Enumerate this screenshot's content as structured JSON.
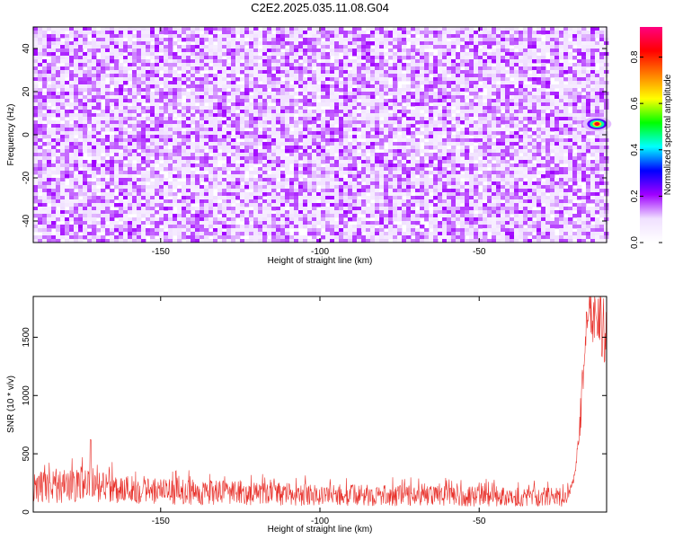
{
  "title": "C2E2.2025.035.11.08.G04",
  "chart_data": [
    {
      "type": "heatmap",
      "xlabel": "Height of straight line (km)",
      "ylabel": "Frequency (Hz)",
      "xlim": [
        -190,
        -10
      ],
      "ylim": [
        -50,
        50
      ],
      "xticks": [
        -150,
        -100,
        -50
      ],
      "yticks": [
        -40,
        -20,
        0,
        20,
        40
      ],
      "colorbar": {
        "label": "Normalized spectral amplitude",
        "range": [
          0,
          0.93
        ],
        "ticks": [
          0.0,
          0.2,
          0.4,
          0.6,
          0.8
        ],
        "colormap": [
          "#ffffff",
          "#f0e0ff",
          "#a000ff",
          "#0000ff",
          "#00ffff",
          "#00ff00",
          "#ffff00",
          "#ff8000",
          "#ff0000",
          "#ff0080"
        ]
      },
      "noise_level": [
        0.05,
        0.18
      ],
      "hotspot": {
        "x": -13,
        "y": 5,
        "value": 0.85
      }
    },
    {
      "type": "line",
      "xlabel": "Height of straight line (km)",
      "ylabel": "SNR (10 * v/v)",
      "xlim": [
        -190,
        -10
      ],
      "ylim": [
        0,
        1850
      ],
      "xticks": [
        -150,
        -100,
        -50
      ],
      "yticks": [
        0,
        500,
        1000,
        1500
      ],
      "color": "#e8302a",
      "baseline": [
        {
          "x": -190,
          "y": 220
        },
        {
          "x": -175,
          "y": 230
        },
        {
          "x": -150,
          "y": 180
        },
        {
          "x": -100,
          "y": 150
        },
        {
          "x": -60,
          "y": 140
        },
        {
          "x": -22,
          "y": 130
        }
      ],
      "spike": {
        "x": -172,
        "y": 620
      },
      "rise": [
        {
          "x": -22,
          "y": 150
        },
        {
          "x": -20,
          "y": 300
        },
        {
          "x": -18,
          "y": 900
        },
        {
          "x": -17,
          "y": 1500
        },
        {
          "x": -15,
          "y": 1850
        },
        {
          "x": -12,
          "y": 1700
        },
        {
          "x": -10,
          "y": 1500
        }
      ]
    }
  ]
}
